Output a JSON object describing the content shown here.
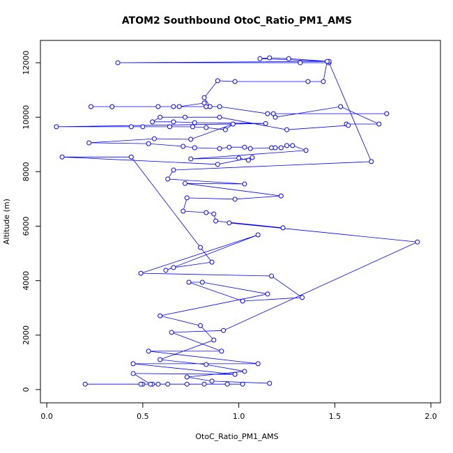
{
  "chart_data": {
    "type": "line",
    "markers": true,
    "title": "ATOM2 Southbound OtoC_Ratio_PM1_AMS",
    "x_label": "OtoC_Ratio_PM1_AMS",
    "y_label": "Altitude (m)",
    "color": "#0000ff",
    "xlim": [
      -0.033,
      2.05
    ],
    "ylim": [
      -486,
      12820
    ],
    "xticks": [
      {
        "value": 0,
        "label": "0.0"
      },
      0.5,
      {
        "value": 1,
        "label": "1.0"
      },
      1.5,
      {
        "value": 2,
        "label": "2.0"
      }
    ],
    "yticks": [
      0,
      2000,
      4000,
      6000,
      8000,
      10000,
      12000
    ],
    "x": [
      0.2,
      1.02,
      0.5,
      0.94,
      0.55,
      0.82,
      0.58,
      0.73,
      0.63,
      0.49,
      0.54,
      0.45,
      0.98,
      0.45,
      1.1,
      0.53,
      0.91,
      0.65,
      0.92,
      1.93,
      0.95,
      1.23,
      0.88,
      0.87,
      0.83,
      0.71,
      0.73,
      0.98,
      1.22,
      0.72,
      1.03,
      0.63,
      0.66,
      1.69,
      1.47,
      1.32,
      0.37,
      1.47,
      1.26,
      1.16,
      1.11,
      1.46,
      1.44,
      1.36,
      0.98,
      0.89,
      0.82,
      0.85,
      0.23,
      0.34,
      0.58,
      0.66,
      0.69,
      0.82,
      0.83,
      0.9,
      1.15,
      1.77,
      1.18,
      1.19,
      1.53,
      1.73,
      1.56,
      1.57,
      1.25,
      0.9,
      0.72,
      0.59,
      0.55,
      0.66,
      0.77,
      1.14,
      0.05,
      0.44,
      0.5,
      0.64,
      0.76,
      0.83,
      0.93,
      0.97,
      0.75,
      0.56,
      0.22,
      0.53,
      0.71,
      0.77,
      0.9,
      0.95,
      1.03,
      1.06,
      1.17,
      1.19,
      1.22,
      1.25,
      1.28,
      1.35,
      0.75,
      1.0,
      1.05,
      1.07,
      0.89,
      0.08,
      0.44,
      0.8,
      0.86,
      0.66,
      0.62,
      1.1,
      0.49,
      1.17,
      1.33,
      1.02,
      0.74,
      0.81,
      1.15,
      0.59,
      0.8,
      0.87,
      0.59,
      0.83,
      1.03,
      0.73,
      0.86,
      1.16
    ],
    "values": [
      200,
      200,
      200,
      200,
      200,
      200,
      200,
      200,
      200,
      200,
      200,
      590,
      560,
      950,
      950,
      1410,
      1410,
      2100,
      2170,
      5420,
      6120,
      5940,
      6190,
      6450,
      6500,
      6550,
      7040,
      6990,
      7110,
      7570,
      7550,
      7730,
      8060,
      8370,
      12000,
      12000,
      12000,
      12050,
      12150,
      12180,
      12150,
      12050,
      11310,
      11310,
      11310,
      11340,
      10720,
      10390,
      10390,
      10390,
      10390,
      10390,
      10390,
      10520,
      10390,
      10390,
      10130,
      10130,
      10130,
      10000,
      10390,
      9750,
      9750,
      9700,
      9540,
      10000,
      10000,
      10000,
      9830,
      9830,
      9800,
      9770,
      9650,
      9650,
      9650,
      9650,
      9650,
      9620,
      9540,
      9750,
      9190,
      9210,
      9060,
      9030,
      8930,
      8880,
      8850,
      8900,
      8900,
      8850,
      8880,
      8880,
      8880,
      8960,
      8960,
      8780,
      8470,
      8500,
      8420,
      8520,
      8270,
      8540,
      8540,
      5220,
      4680,
      4480,
      4380,
      5680,
      4270,
      4170,
      3380,
      3250,
      3940,
      3940,
      3510,
      2710,
      2350,
      1820,
      1100,
      920,
      670,
      460,
      310,
      230
    ]
  }
}
